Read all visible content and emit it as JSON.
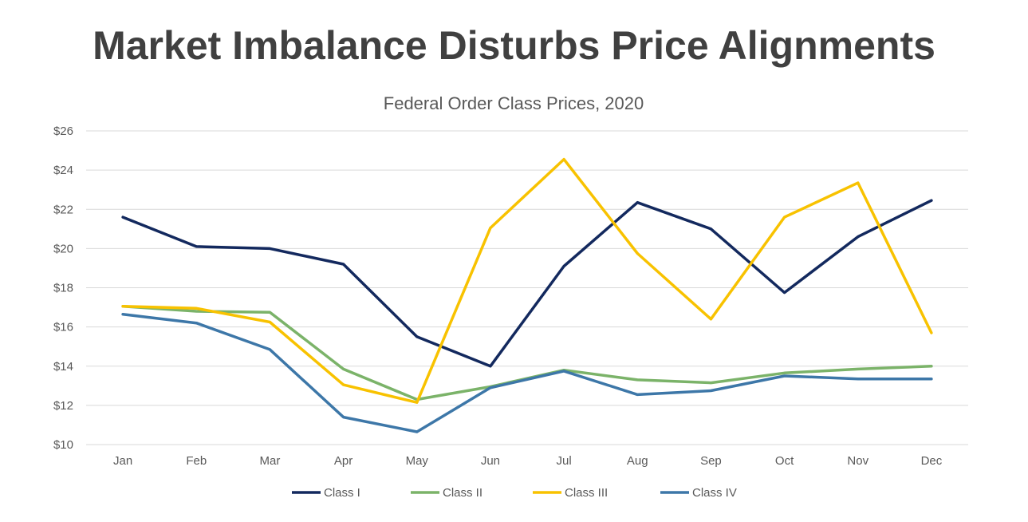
{
  "page": {
    "title": "Market Imbalance Disturbs Price Alignments"
  },
  "chart_data": {
    "type": "line",
    "title": "Federal Order Class Prices, 2020",
    "xlabel": "",
    "ylabel": "",
    "categories": [
      "Jan",
      "Feb",
      "Mar",
      "Apr",
      "May",
      "Jun",
      "Jul",
      "Aug",
      "Sep",
      "Oct",
      "Nov",
      "Dec"
    ],
    "ylim": [
      10,
      26
    ],
    "y_ticks": [
      10,
      12,
      14,
      16,
      18,
      20,
      22,
      24,
      26
    ],
    "y_tick_labels": [
      "$10",
      "$12",
      "$14",
      "$16",
      "$18",
      "$20",
      "$22",
      "$24",
      "$26"
    ],
    "grid": true,
    "legend_position": "bottom",
    "series": [
      {
        "name": "Class I",
        "color": "#13295e",
        "values": [
          21.6,
          20.1,
          20.0,
          19.2,
          15.5,
          14.0,
          19.1,
          22.35,
          21.0,
          17.75,
          20.6,
          22.45
        ]
      },
      {
        "name": "Class II",
        "color": "#7bb369",
        "values": [
          17.05,
          16.8,
          16.75,
          13.85,
          12.3,
          12.95,
          13.8,
          13.3,
          13.15,
          13.65,
          13.85,
          14.0
        ]
      },
      {
        "name": "Class III",
        "color": "#f8c200",
        "values": [
          17.05,
          16.95,
          16.25,
          13.05,
          12.15,
          21.05,
          24.55,
          19.75,
          16.4,
          21.6,
          23.35,
          15.7
        ]
      },
      {
        "name": "Class IV",
        "color": "#3d77a8",
        "values": [
          16.65,
          16.2,
          14.85,
          11.4,
          10.65,
          12.9,
          13.75,
          12.55,
          12.75,
          13.5,
          13.35,
          13.35
        ]
      }
    ]
  }
}
